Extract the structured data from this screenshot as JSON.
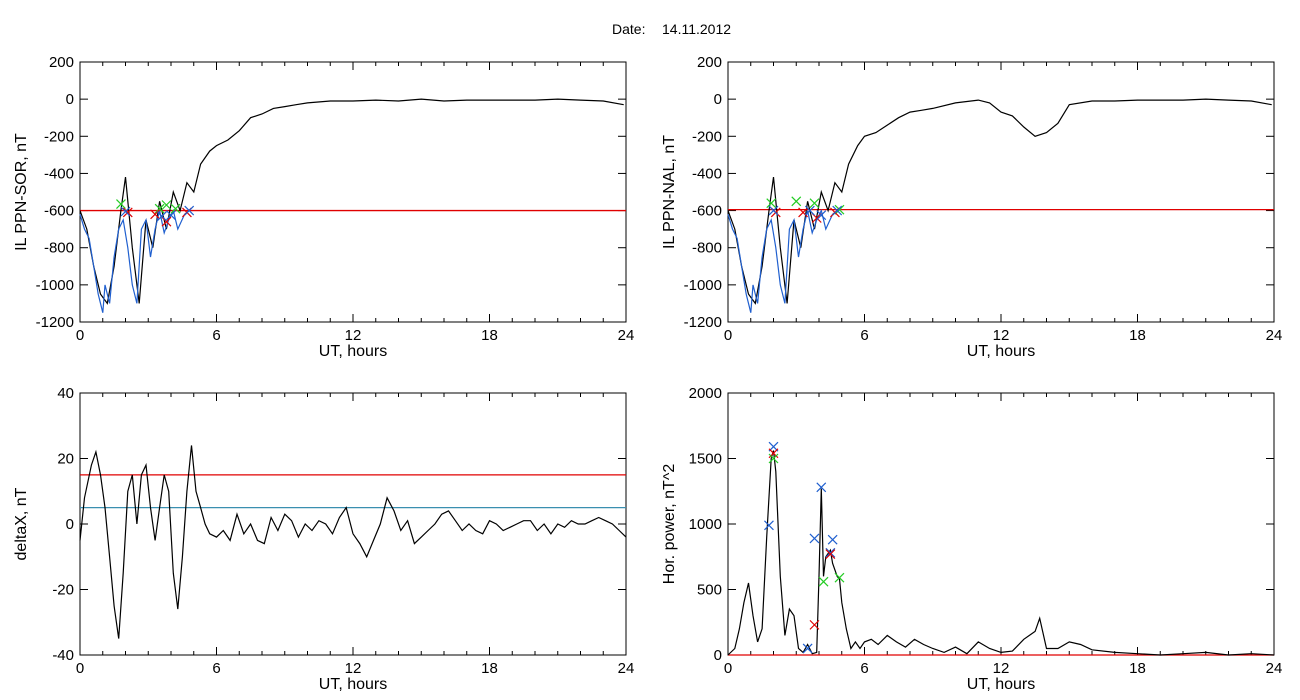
{
  "figure": {
    "date_label": "Date:",
    "date_value": "14.11.2012"
  },
  "colors": {
    "trace": "#000000",
    "blue": "#1f5fcf",
    "red": "#e00000",
    "green": "#22cc22",
    "cyan_line": "#3a8fb0"
  },
  "chart_data": [
    {
      "id": "il_sor",
      "type": "line",
      "xlabel": "UT, hours",
      "ylabel": "IL PPN-SOR, nT",
      "xlim": [
        0,
        24
      ],
      "ylim": [
        -1200,
        200
      ],
      "xticks": [
        0,
        6,
        12,
        18,
        24
      ],
      "yticks": [
        -1200,
        -1000,
        -800,
        -600,
        -400,
        -200,
        0,
        200
      ],
      "threshold": {
        "y": -600,
        "color": "red"
      },
      "series": [
        {
          "color": "black",
          "x": [
            0,
            0.3,
            0.6,
            0.9,
            1.2,
            1.5,
            1.8,
            2.0,
            2.3,
            2.6,
            2.9,
            3.2,
            3.5,
            3.8,
            4.1,
            4.4,
            4.7,
            5.0,
            5.3,
            5.7,
            6.0,
            6.5,
            7.0,
            7.5,
            8.0,
            8.5,
            9.0,
            9.5,
            10,
            11,
            12,
            13,
            14,
            15,
            16,
            17,
            18,
            19,
            20,
            21,
            22,
            23,
            23.9
          ],
          "y": [
            -600,
            -700,
            -900,
            -1050,
            -1100,
            -900,
            -600,
            -420,
            -800,
            -1100,
            -650,
            -800,
            -550,
            -700,
            -500,
            -600,
            -450,
            -500,
            -350,
            -280,
            -250,
            -220,
            -170,
            -100,
            -80,
            -50,
            -40,
            -30,
            -20,
            -10,
            -10,
            -5,
            -10,
            0,
            -10,
            -5,
            -5,
            -5,
            -5,
            0,
            -5,
            -10,
            -30
          ]
        },
        {
          "color": "blue",
          "x": [
            0,
            0.2,
            0.4,
            0.6,
            0.8,
            1.0,
            1.1,
            1.3,
            1.5,
            1.7,
            1.9,
            2.1,
            2.3,
            2.5,
            2.7,
            2.9,
            3.1,
            3.3,
            3.5,
            3.7,
            3.9,
            4.1,
            4.3,
            4.6,
            4.8
          ],
          "y": [
            -620,
            -700,
            -750,
            -900,
            -1050,
            -1150,
            -1000,
            -1100,
            -850,
            -700,
            -650,
            -800,
            -1000,
            -1100,
            -700,
            -650,
            -850,
            -700,
            -600,
            -720,
            -650,
            -600,
            -700,
            -620,
            -600
          ]
        }
      ],
      "markers": [
        {
          "color": "green",
          "x": [
            1.8,
            3.8,
            4.2,
            3.5
          ],
          "y": [
            -565,
            -570,
            -590,
            -590
          ]
        },
        {
          "color": "red",
          "x": [
            2.1,
            3.3,
            3.8,
            4.7
          ],
          "y": [
            -610,
            -620,
            -660,
            -610
          ]
        },
        {
          "color": "blue",
          "x": [
            2.0,
            3.6,
            4.0,
            4.8
          ],
          "y": [
            -605,
            -630,
            -625,
            -600
          ]
        }
      ]
    },
    {
      "id": "il_nal",
      "type": "line",
      "xlabel": "UT, hours",
      "ylabel": "IL PPN-NAL, nT",
      "xlim": [
        0,
        24
      ],
      "ylim": [
        -1200,
        200
      ],
      "xticks": [
        0,
        6,
        12,
        18,
        24
      ],
      "yticks": [
        -1200,
        -1000,
        -800,
        -600,
        -400,
        -200,
        0,
        200
      ],
      "threshold": {
        "y": -595,
        "color": "red"
      },
      "series": [
        {
          "color": "black",
          "x": [
            0,
            0.3,
            0.6,
            0.9,
            1.2,
            1.5,
            1.8,
            2.0,
            2.3,
            2.6,
            2.9,
            3.2,
            3.5,
            3.8,
            4.1,
            4.4,
            4.7,
            5.0,
            5.3,
            5.7,
            6.0,
            6.5,
            7.0,
            7.5,
            8.0,
            8.5,
            9.0,
            10,
            11,
            11.5,
            12,
            12.5,
            13,
            13.5,
            14,
            14.5,
            15,
            16,
            17,
            18,
            19,
            20,
            21,
            22,
            23,
            23.9
          ],
          "y": [
            -600,
            -700,
            -900,
            -1050,
            -1100,
            -900,
            -600,
            -420,
            -800,
            -1100,
            -650,
            -800,
            -550,
            -700,
            -500,
            -600,
            -450,
            -500,
            -350,
            -250,
            -200,
            -180,
            -140,
            -100,
            -70,
            -60,
            -50,
            -20,
            -5,
            -20,
            -70,
            -90,
            -150,
            -200,
            -180,
            -130,
            -30,
            -10,
            -10,
            -5,
            -5,
            -5,
            0,
            -5,
            -10,
            -30
          ]
        },
        {
          "color": "blue",
          "x": [
            0,
            0.2,
            0.4,
            0.6,
            0.8,
            1.0,
            1.1,
            1.3,
            1.5,
            1.7,
            1.9,
            2.1,
            2.3,
            2.5,
            2.7,
            2.9,
            3.1,
            3.3,
            3.5,
            3.7,
            3.9,
            4.1,
            4.3,
            4.6,
            4.8
          ],
          "y": [
            -620,
            -700,
            -750,
            -900,
            -1050,
            -1150,
            -1000,
            -1100,
            -850,
            -700,
            -650,
            -800,
            -1000,
            -1100,
            -700,
            -650,
            -850,
            -700,
            -600,
            -720,
            -650,
            -600,
            -700,
            -620,
            -600
          ]
        }
      ],
      "markers": [
        {
          "color": "green",
          "x": [
            1.9,
            3.0,
            3.8,
            4.9
          ],
          "y": [
            -560,
            -550,
            -560,
            -595
          ]
        },
        {
          "color": "red",
          "x": [
            2.1,
            3.3,
            3.9,
            4.7
          ],
          "y": [
            -610,
            -610,
            -640,
            -610
          ]
        },
        {
          "color": "blue",
          "x": [
            2.0,
            3.6,
            4.1,
            4.8
          ],
          "y": [
            -600,
            -600,
            -625,
            -600
          ]
        }
      ]
    },
    {
      "id": "deltax",
      "type": "line",
      "xlabel": "UT, hours",
      "ylabel": "deltaX, nT",
      "xlim": [
        0,
        24
      ],
      "ylim": [
        -40,
        40
      ],
      "xticks": [
        0,
        6,
        12,
        18,
        24
      ],
      "yticks": [
        -40,
        -20,
        0,
        20,
        40
      ],
      "thresholds": [
        {
          "y": 15,
          "color": "red"
        },
        {
          "y": 5,
          "color": "cyan_line"
        }
      ],
      "series": [
        {
          "color": "black",
          "x": [
            0,
            0.2,
            0.5,
            0.7,
            0.9,
            1.1,
            1.3,
            1.5,
            1.7,
            1.9,
            2.1,
            2.3,
            2.5,
            2.7,
            2.9,
            3.1,
            3.3,
            3.5,
            3.7,
            3.9,
            4.1,
            4.3,
            4.5,
            4.7,
            4.9,
            5.1,
            5.3,
            5.5,
            5.7,
            6.0,
            6.3,
            6.6,
            6.9,
            7.2,
            7.5,
            7.8,
            8.1,
            8.4,
            8.7,
            9.0,
            9.3,
            9.6,
            9.9,
            10.2,
            10.5,
            10.8,
            11.1,
            11.4,
            11.7,
            12.0,
            12.3,
            12.6,
            12.9,
            13.2,
            13.5,
            13.8,
            14.1,
            14.4,
            14.7,
            15.0,
            15.3,
            15.6,
            15.9,
            16.2,
            16.5,
            16.8,
            17.1,
            17.4,
            17.7,
            18.0,
            18.3,
            18.6,
            18.9,
            19.2,
            19.5,
            19.8,
            20.1,
            20.4,
            20.7,
            21.0,
            21.3,
            21.6,
            21.9,
            22.2,
            22.5,
            22.8,
            23.1,
            23.4,
            23.7,
            24.0
          ],
          "y": [
            -5,
            8,
            18,
            22,
            15,
            5,
            -10,
            -25,
            -35,
            -15,
            10,
            15,
            0,
            15,
            18,
            5,
            -5,
            5,
            15,
            10,
            -15,
            -26,
            -10,
            10,
            24,
            10,
            5,
            0,
            -3,
            -4,
            -2,
            -5,
            3,
            -3,
            0,
            -5,
            -6,
            2,
            -2,
            3,
            1,
            -4,
            0,
            -2,
            1,
            0,
            -3,
            2,
            5,
            -3,
            -6,
            -10,
            -5,
            0,
            8,
            4,
            -2,
            1,
            -6,
            -4,
            -2,
            0,
            3,
            4,
            1,
            -2,
            0,
            -2,
            -3,
            1,
            0,
            -2,
            -1,
            0,
            1,
            1,
            -2,
            0,
            -3,
            0,
            -1,
            1,
            0,
            0,
            1,
            2,
            1,
            0,
            -2,
            -4
          ]
        }
      ]
    },
    {
      "id": "hor_power",
      "type": "line",
      "xlabel": "UT, hours",
      "ylabel": "Hor. power, nT^2",
      "xlim": [
        0,
        24
      ],
      "ylim": [
        0,
        2000
      ],
      "xticks": [
        0,
        6,
        12,
        18,
        24
      ],
      "yticks": [
        0,
        500,
        1000,
        1500,
        2000
      ],
      "threshold": {
        "y": 0,
        "color": "red"
      },
      "series": [
        {
          "color": "black",
          "x": [
            0,
            0.3,
            0.5,
            0.7,
            0.9,
            1.1,
            1.3,
            1.5,
            1.7,
            1.9,
            2.0,
            2.1,
            2.3,
            2.5,
            2.7,
            2.9,
            3.1,
            3.3,
            3.5,
            3.7,
            3.9,
            4.0,
            4.1,
            4.2,
            4.3,
            4.5,
            4.6,
            4.8,
            4.9,
            5.0,
            5.2,
            5.4,
            5.6,
            5.8,
            6.0,
            6.3,
            6.6,
            7.0,
            7.4,
            7.8,
            8.2,
            8.6,
            9.0,
            9.5,
            10,
            10.5,
            11,
            11.5,
            12,
            12.5,
            13,
            13.5,
            13.7,
            14,
            14.5,
            15,
            15.5,
            16,
            17,
            18,
            19,
            20,
            21,
            22,
            23,
            24
          ],
          "y": [
            0,
            50,
            200,
            400,
            550,
            300,
            100,
            200,
            900,
            1500,
            1560,
            1400,
            600,
            150,
            350,
            300,
            50,
            20,
            80,
            10,
            20,
            600,
            1270,
            600,
            750,
            800,
            700,
            600,
            580,
            400,
            200,
            50,
            100,
            50,
            100,
            120,
            80,
            150,
            100,
            60,
            120,
            80,
            50,
            20,
            60,
            10,
            100,
            50,
            20,
            30,
            120,
            180,
            280,
            50,
            50,
            100,
            80,
            40,
            20,
            10,
            0,
            10,
            20,
            0,
            10,
            0
          ]
        }
      ],
      "markers": [
        {
          "color": "blue",
          "x": [
            1.8,
            2.0,
            3.5,
            3.8,
            4.1,
            4.5,
            4.6
          ],
          "y": [
            990,
            1590,
            50,
            890,
            1280,
            780,
            880
          ]
        },
        {
          "color": "red",
          "x": [
            2.0,
            3.8,
            4.5
          ],
          "y": [
            1540,
            230,
            770
          ]
        },
        {
          "color": "green",
          "x": [
            2.0,
            4.2,
            4.9
          ],
          "y": [
            1500,
            560,
            590
          ]
        }
      ]
    }
  ]
}
